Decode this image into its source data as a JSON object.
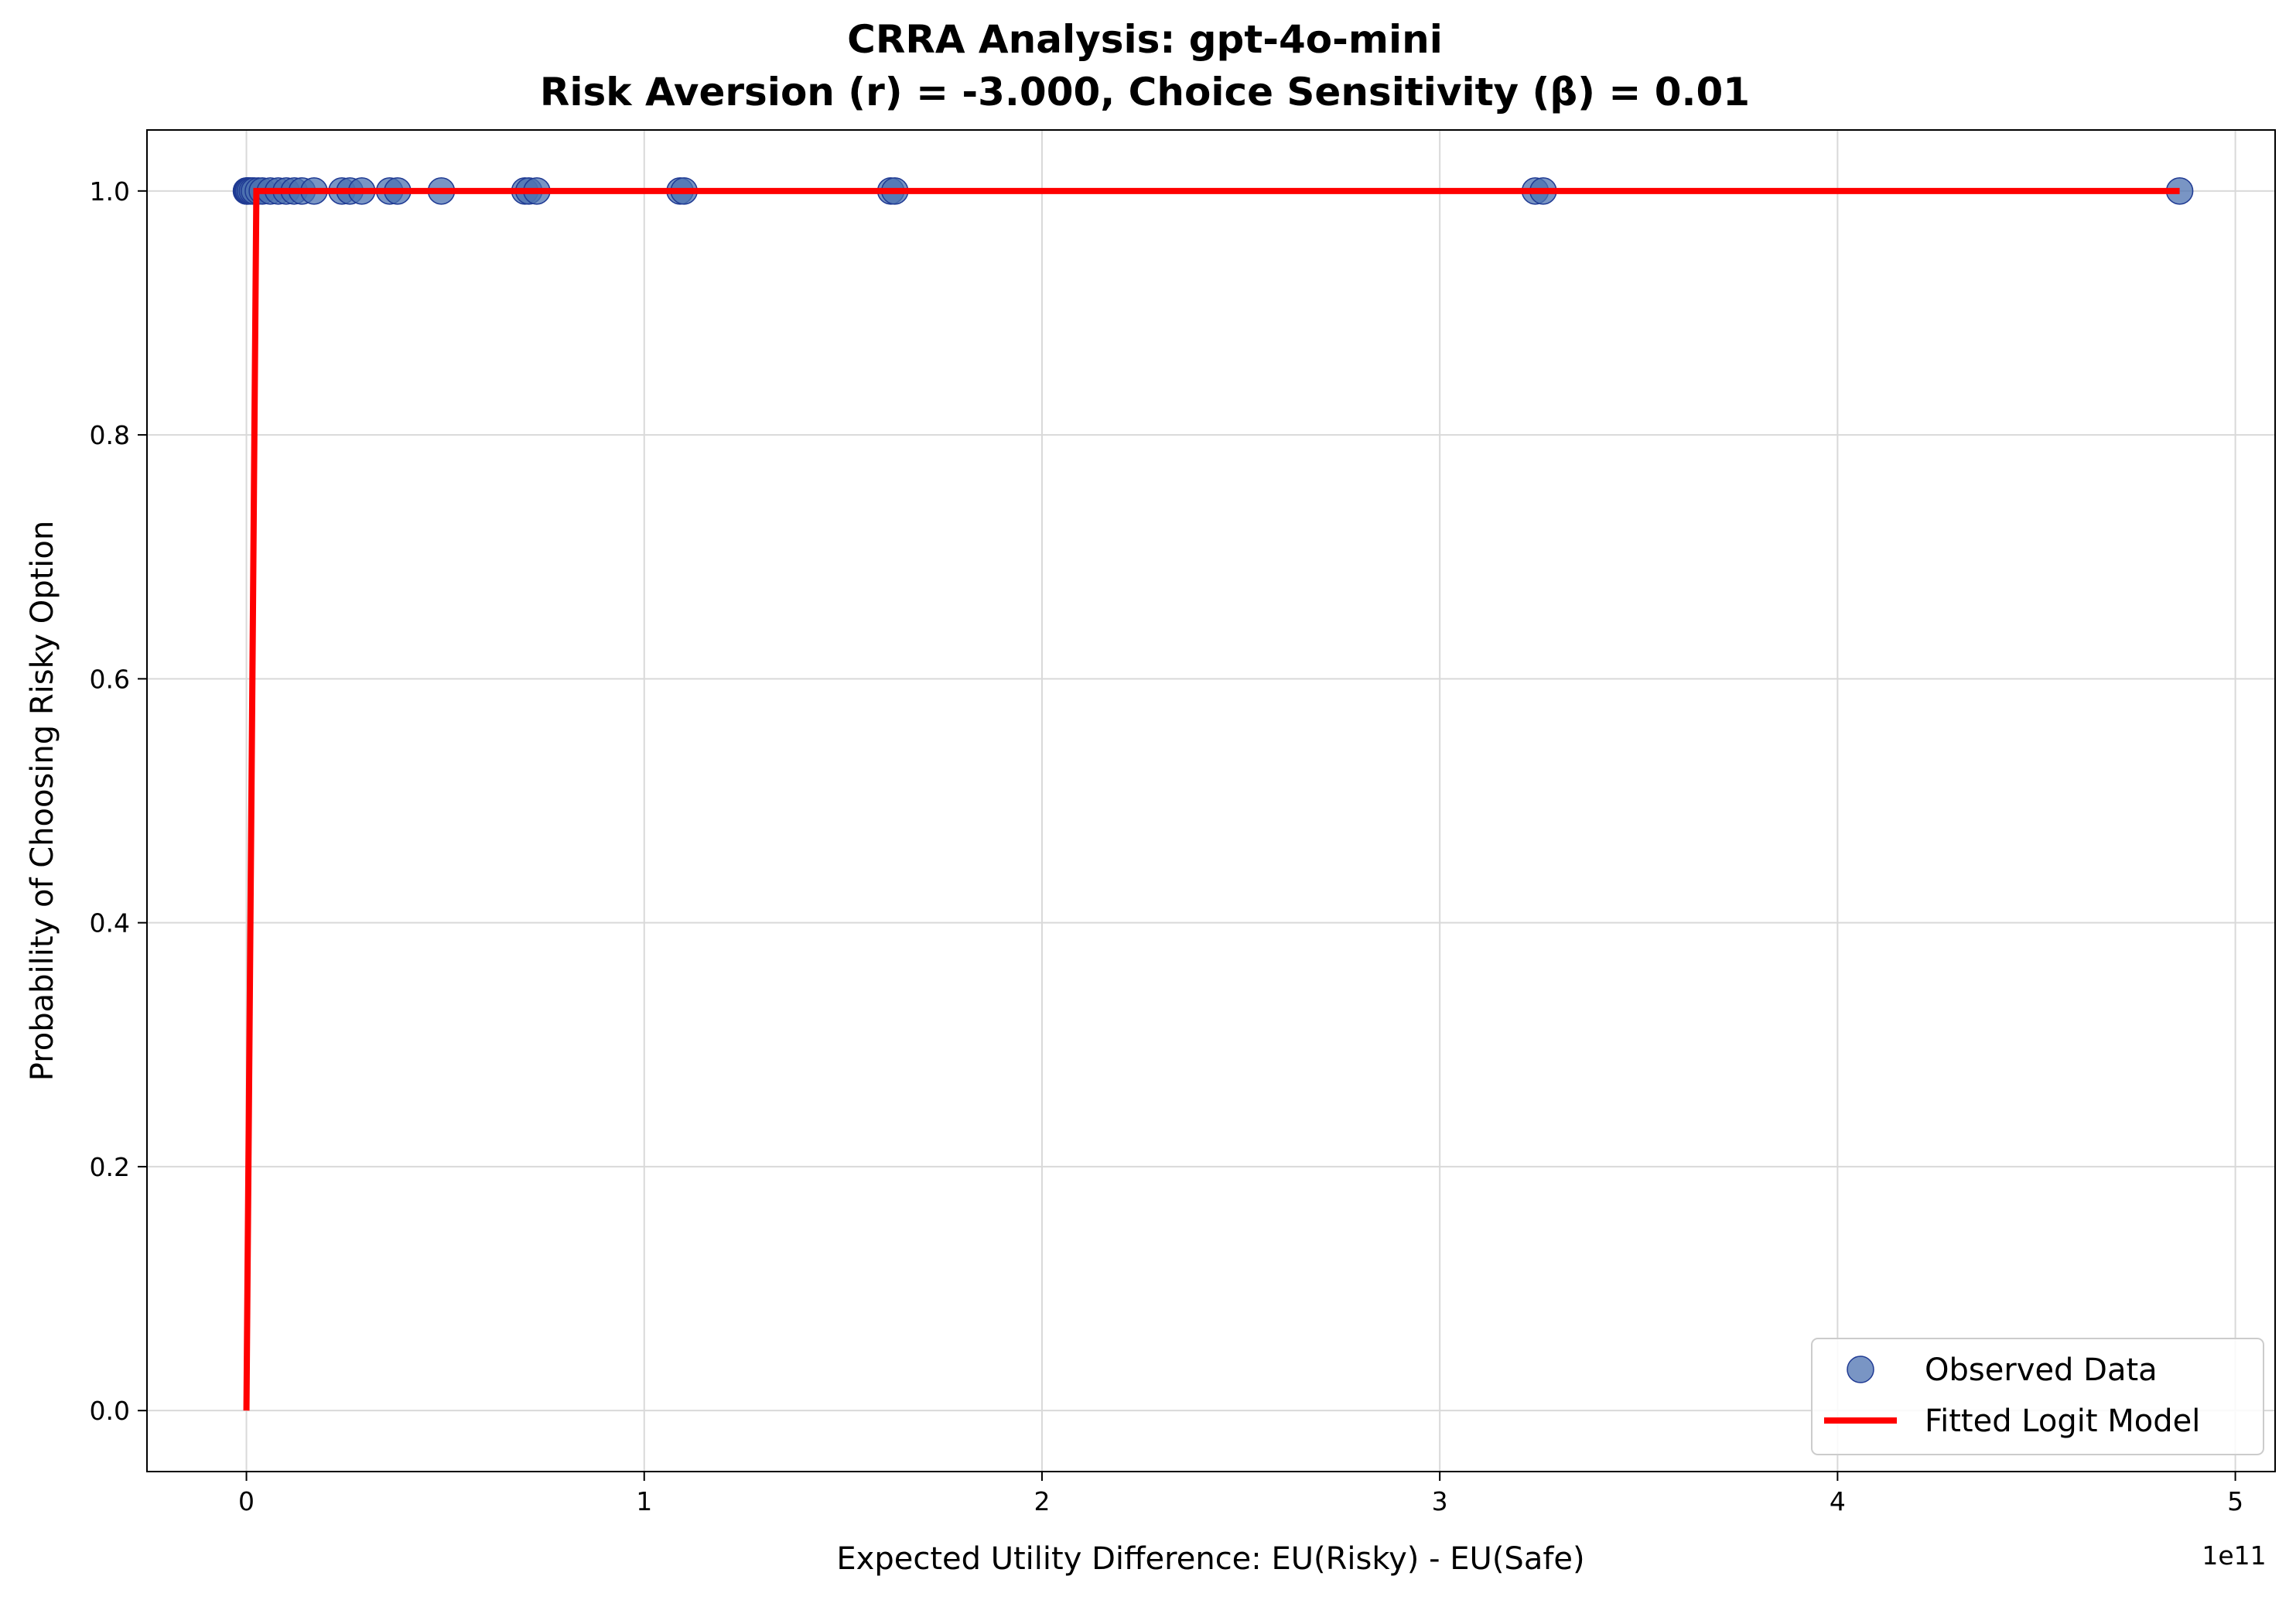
{
  "chart_data": {
    "type": "scatter",
    "title_line1": "CRRA Analysis: gpt-4o-mini",
    "title_line2": "Risk Aversion (r) = -3.000, Choice Sensitivity (β) = 0.01",
    "xlabel": "Expected Utility Difference: EU(Risky) - EU(Safe)",
    "ylabel": "Probability of Choosing Risky Option",
    "x_offset_label": "1e11",
    "x_unit_scale": 100000000000.0,
    "xlim": [
      -0.25,
      5.1
    ],
    "ylim": [
      -0.05,
      1.05
    ],
    "x_ticks": [
      0,
      1,
      2,
      3,
      4,
      5
    ],
    "x_tick_labels": [
      "0",
      "1",
      "2",
      "3",
      "4",
      "5"
    ],
    "y_ticks": [
      0.0,
      0.2,
      0.4,
      0.6,
      0.8,
      1.0
    ],
    "y_tick_labels": [
      "0.0",
      "0.2",
      "0.4",
      "0.6",
      "0.8",
      "1.0"
    ],
    "grid": true,
    "legend_position": "lower-right",
    "series": [
      {
        "name": "Observed Data",
        "kind": "scatter",
        "color": "#4c72b0",
        "edge_color": "#1f3a93",
        "x": [
          0.0,
          0.001,
          0.002,
          0.004,
          0.006,
          0.01,
          0.015,
          0.02,
          0.03,
          0.04,
          0.06,
          0.08,
          0.1,
          0.12,
          0.14,
          0.17,
          0.24,
          0.26,
          0.29,
          0.36,
          0.38,
          0.49,
          0.7,
          0.71,
          0.73,
          1.09,
          1.1,
          1.62,
          1.63,
          3.24,
          3.26,
          4.86
        ],
        "y": [
          1,
          1,
          1,
          1,
          1,
          1,
          1,
          1,
          1,
          1,
          1,
          1,
          1,
          1,
          1,
          1,
          1,
          1,
          1,
          1,
          1,
          1,
          1,
          1,
          1,
          1,
          1,
          1,
          1,
          1,
          1,
          1
        ]
      },
      {
        "name": "Fitted Logit Model",
        "kind": "line",
        "color": "#ff0000",
        "x": [
          0.0,
          0.025,
          4.86
        ],
        "y": [
          0.0,
          1.0,
          1.0
        ]
      }
    ]
  }
}
